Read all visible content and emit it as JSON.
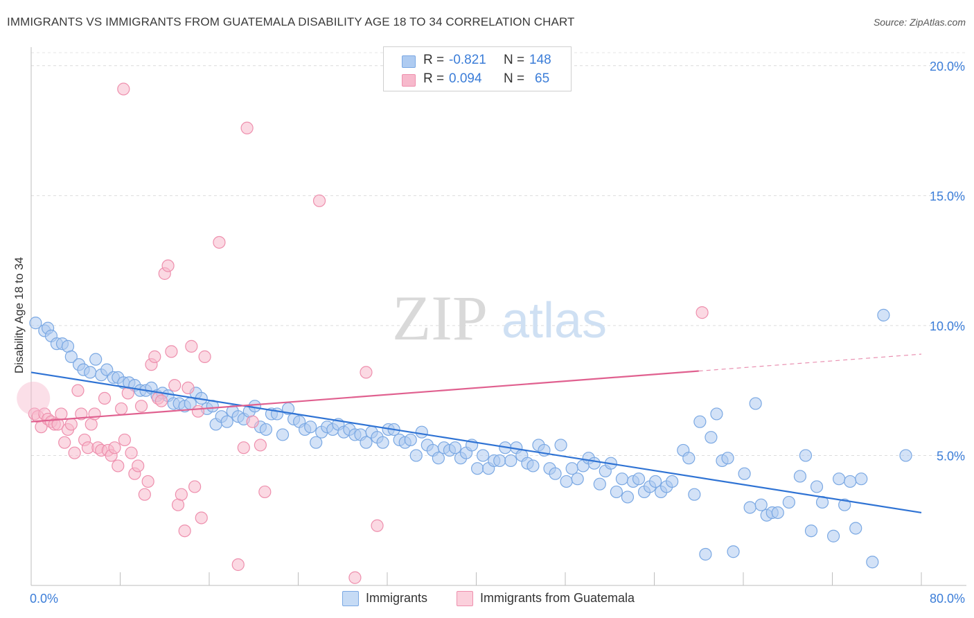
{
  "header": {
    "title": "IMMIGRANTS VS IMMIGRANTS FROM GUATEMALA DISABILITY AGE 18 TO 34 CORRELATION CHART",
    "source": "Source: ZipAtlas.com"
  },
  "watermark": {
    "zip": "ZIP",
    "atlas": "atlas"
  },
  "legend": {
    "rows": [
      {
        "r_label": "R =",
        "r_value": "-0.821",
        "n_label": "N =",
        "n_value": "148",
        "color": "#aecbf1"
      },
      {
        "r_label": "R =",
        "r_value": "0.094",
        "n_label": "N =",
        "n_value": "65",
        "color": "#f7b9cc"
      }
    ]
  },
  "chart_data": {
    "type": "scatter",
    "title": "IMMIGRANTS VS IMMIGRANTS FROM GUATEMALA DISABILITY AGE 18 TO 34 CORRELATION CHART",
    "xlabel": "",
    "ylabel": "Disability Age 18 to 34",
    "xlim": [
      0,
      80
    ],
    "ylim": [
      0,
      20.5
    ],
    "x_tick_labels": [
      "0.0%",
      "80.0%"
    ],
    "y_tick_labels": [
      "5.0%",
      "10.0%",
      "15.0%",
      "20.0%"
    ],
    "y_ticks": [
      5,
      10,
      15,
      20
    ],
    "grid": true,
    "legend_position": "top-center",
    "series": [
      {
        "name": "Immigrants",
        "color": "#aecbf1",
        "stroke": "#7aa8e3",
        "line_color": "#2f73d4",
        "trend": {
          "x": [
            0,
            80
          ],
          "y": [
            8.2,
            2.8
          ],
          "dashed_from": null
        },
        "points": [
          [
            0.4,
            10.1
          ],
          [
            1.2,
            9.8
          ],
          [
            1.5,
            9.9
          ],
          [
            1.8,
            9.6
          ],
          [
            2.3,
            9.3
          ],
          [
            2.8,
            9.3
          ],
          [
            3.3,
            9.2
          ],
          [
            3.6,
            8.8
          ],
          [
            4.3,
            8.5
          ],
          [
            4.7,
            8.3
          ],
          [
            5.3,
            8.2
          ],
          [
            5.8,
            8.7
          ],
          [
            6.3,
            8.1
          ],
          [
            6.8,
            8.3
          ],
          [
            7.4,
            8.0
          ],
          [
            7.8,
            8.0
          ],
          [
            8.3,
            7.8
          ],
          [
            8.8,
            7.8
          ],
          [
            9.3,
            7.7
          ],
          [
            9.8,
            7.5
          ],
          [
            10.3,
            7.5
          ],
          [
            10.8,
            7.6
          ],
          [
            11.3,
            7.3
          ],
          [
            11.8,
            7.4
          ],
          [
            12.3,
            7.3
          ],
          [
            12.8,
            7.0
          ],
          [
            13.3,
            7.0
          ],
          [
            13.8,
            6.9
          ],
          [
            14.3,
            7.0
          ],
          [
            14.8,
            7.4
          ],
          [
            15.3,
            7.2
          ],
          [
            15.8,
            6.8
          ],
          [
            16.3,
            6.9
          ],
          [
            16.6,
            6.2
          ],
          [
            17.1,
            6.5
          ],
          [
            17.6,
            6.3
          ],
          [
            18.1,
            6.7
          ],
          [
            18.6,
            6.5
          ],
          [
            19.1,
            6.4
          ],
          [
            19.6,
            6.7
          ],
          [
            20.1,
            6.9
          ],
          [
            20.6,
            6.1
          ],
          [
            21.1,
            6.0
          ],
          [
            21.6,
            6.6
          ],
          [
            22.1,
            6.6
          ],
          [
            22.6,
            5.8
          ],
          [
            23.1,
            6.8
          ],
          [
            23.6,
            6.4
          ],
          [
            24.1,
            6.3
          ],
          [
            24.6,
            6.0
          ],
          [
            25.1,
            6.1
          ],
          [
            25.6,
            5.5
          ],
          [
            26.1,
            5.9
          ],
          [
            26.6,
            6.1
          ],
          [
            27.1,
            6.0
          ],
          [
            27.6,
            6.2
          ],
          [
            28.1,
            5.9
          ],
          [
            28.6,
            6.0
          ],
          [
            29.1,
            5.8
          ],
          [
            29.6,
            5.8
          ],
          [
            30.1,
            5.5
          ],
          [
            30.6,
            5.9
          ],
          [
            31.1,
            5.7
          ],
          [
            31.6,
            5.5
          ],
          [
            32.1,
            6.0
          ],
          [
            32.6,
            6.0
          ],
          [
            33.1,
            5.6
          ],
          [
            33.6,
            5.5
          ],
          [
            34.1,
            5.6
          ],
          [
            34.6,
            5.0
          ],
          [
            35.1,
            5.9
          ],
          [
            35.6,
            5.4
          ],
          [
            36.1,
            5.2
          ],
          [
            36.6,
            4.9
          ],
          [
            37.1,
            5.3
          ],
          [
            37.6,
            5.2
          ],
          [
            38.1,
            5.3
          ],
          [
            38.6,
            4.9
          ],
          [
            39.1,
            5.1
          ],
          [
            39.6,
            5.4
          ],
          [
            40.1,
            4.5
          ],
          [
            40.6,
            5.0
          ],
          [
            41.1,
            4.5
          ],
          [
            41.6,
            4.8
          ],
          [
            42.1,
            4.8
          ],
          [
            42.6,
            5.3
          ],
          [
            43.1,
            4.8
          ],
          [
            43.6,
            5.3
          ],
          [
            44.1,
            5.0
          ],
          [
            44.6,
            4.7
          ],
          [
            45.1,
            4.6
          ],
          [
            45.6,
            5.4
          ],
          [
            46.1,
            5.2
          ],
          [
            46.6,
            4.5
          ],
          [
            47.1,
            4.3
          ],
          [
            47.6,
            5.4
          ],
          [
            48.1,
            4.0
          ],
          [
            48.6,
            4.5
          ],
          [
            49.1,
            4.1
          ],
          [
            49.6,
            4.6
          ],
          [
            50.1,
            4.9
          ],
          [
            50.6,
            4.7
          ],
          [
            51.1,
            3.9
          ],
          [
            51.6,
            4.4
          ],
          [
            52.1,
            4.7
          ],
          [
            52.6,
            3.6
          ],
          [
            53.1,
            4.1
          ],
          [
            53.6,
            3.4
          ],
          [
            54.1,
            4.0
          ],
          [
            54.6,
            4.1
          ],
          [
            55.1,
            3.6
          ],
          [
            55.6,
            3.8
          ],
          [
            56.1,
            4.0
          ],
          [
            56.6,
            3.6
          ],
          [
            57.1,
            3.8
          ],
          [
            57.6,
            4.0
          ],
          [
            58.6,
            5.2
          ],
          [
            59.1,
            4.9
          ],
          [
            59.6,
            3.5
          ],
          [
            60.1,
            6.3
          ],
          [
            60.6,
            1.2
          ],
          [
            61.1,
            5.7
          ],
          [
            61.6,
            6.6
          ],
          [
            62.1,
            4.8
          ],
          [
            62.6,
            4.9
          ],
          [
            63.1,
            1.3
          ],
          [
            64.1,
            4.3
          ],
          [
            64.6,
            3.0
          ],
          [
            65.1,
            7.0
          ],
          [
            65.6,
            3.1
          ],
          [
            66.1,
            2.7
          ],
          [
            66.6,
            2.8
          ],
          [
            67.1,
            2.8
          ],
          [
            68.1,
            3.2
          ],
          [
            69.1,
            4.2
          ],
          [
            69.6,
            5.0
          ],
          [
            70.1,
            2.1
          ],
          [
            70.6,
            3.8
          ],
          [
            71.1,
            3.2
          ],
          [
            72.1,
            1.9
          ],
          [
            72.6,
            4.1
          ],
          [
            73.1,
            3.1
          ],
          [
            73.6,
            4.0
          ],
          [
            74.1,
            2.2
          ],
          [
            74.6,
            4.1
          ],
          [
            75.6,
            0.9
          ],
          [
            76.6,
            10.4
          ],
          [
            78.6,
            5.0
          ]
        ]
      },
      {
        "name": "Immigrants from Guatemala",
        "color": "#f7b9cc",
        "stroke": "#ee8fad",
        "line_color": "#e0608f",
        "trend": {
          "x": [
            0,
            80
          ],
          "y": [
            6.3,
            8.9
          ],
          "dashed_from": 60
        },
        "points": [
          [
            0.3,
            6.6
          ],
          [
            0.6,
            6.5
          ],
          [
            0.9,
            6.1
          ],
          [
            1.2,
            6.6
          ],
          [
            1.5,
            6.4
          ],
          [
            1.8,
            6.3
          ],
          [
            2.1,
            6.2
          ],
          [
            2.4,
            6.2
          ],
          [
            2.7,
            6.6
          ],
          [
            3.0,
            5.5
          ],
          [
            3.3,
            6.0
          ],
          [
            3.6,
            6.2
          ],
          [
            3.9,
            5.1
          ],
          [
            4.2,
            7.5
          ],
          [
            4.5,
            6.6
          ],
          [
            4.8,
            5.6
          ],
          [
            5.1,
            5.3
          ],
          [
            5.4,
            6.2
          ],
          [
            5.7,
            6.6
          ],
          [
            6.0,
            5.3
          ],
          [
            6.3,
            5.2
          ],
          [
            6.6,
            7.2
          ],
          [
            6.9,
            5.2
          ],
          [
            7.2,
            5.0
          ],
          [
            7.5,
            5.3
          ],
          [
            7.8,
            4.6
          ],
          [
            8.1,
            6.8
          ],
          [
            8.4,
            5.6
          ],
          [
            8.7,
            7.4
          ],
          [
            9.0,
            5.1
          ],
          [
            9.3,
            4.3
          ],
          [
            9.6,
            4.6
          ],
          [
            9.9,
            6.9
          ],
          [
            10.2,
            3.5
          ],
          [
            10.5,
            4.0
          ],
          [
            10.8,
            8.5
          ],
          [
            11.1,
            8.8
          ],
          [
            11.4,
            7.2
          ],
          [
            11.7,
            7.1
          ],
          [
            12.0,
            12.0
          ],
          [
            12.3,
            12.3
          ],
          [
            12.6,
            9.0
          ],
          [
            12.9,
            7.7
          ],
          [
            13.2,
            3.1
          ],
          [
            13.5,
            3.5
          ],
          [
            13.8,
            2.1
          ],
          [
            14.1,
            7.6
          ],
          [
            14.4,
            9.2
          ],
          [
            14.7,
            3.8
          ],
          [
            15.0,
            6.7
          ],
          [
            15.3,
            2.6
          ],
          [
            15.6,
            8.8
          ],
          [
            16.9,
            13.2
          ],
          [
            18.6,
            0.8
          ],
          [
            19.1,
            5.3
          ],
          [
            19.4,
            17.6
          ],
          [
            19.9,
            6.3
          ],
          [
            20.6,
            5.4
          ],
          [
            21.0,
            3.6
          ],
          [
            25.9,
            14.8
          ],
          [
            29.1,
            0.3
          ],
          [
            30.1,
            8.2
          ],
          [
            31.1,
            2.3
          ],
          [
            60.3,
            10.5
          ],
          [
            8.3,
            19.1
          ]
        ]
      }
    ]
  },
  "bottom_legend": [
    {
      "label": "Immigrants",
      "color": "#aecbf1"
    },
    {
      "label": "Immigrants from Guatemala",
      "color": "#f7b9cc"
    }
  ]
}
